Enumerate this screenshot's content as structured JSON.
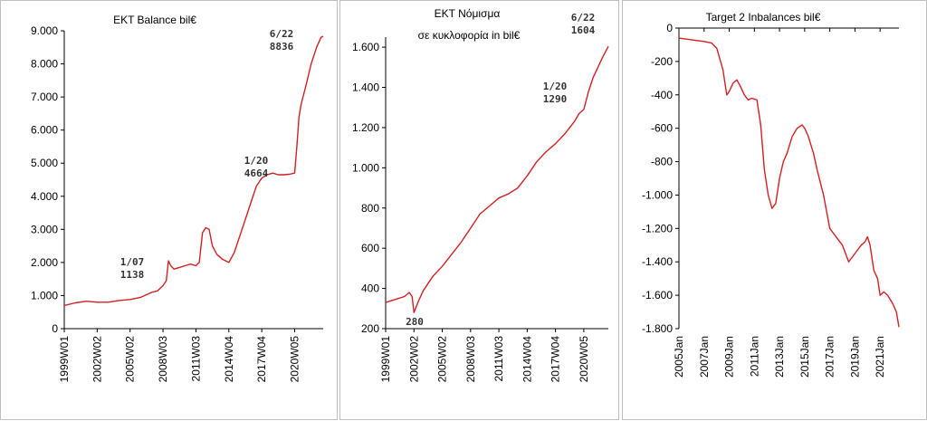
{
  "colors": {
    "line": "#d42020",
    "axis": "#000000",
    "frame": "#bdbdbd"
  },
  "chart_data": [
    {
      "type": "line",
      "title": "EKT Balance  bil€",
      "xlabel": "",
      "ylabel": "",
      "y_tick_labels": [
        "0",
        "1.000",
        "2.000",
        "3.000",
        "4.000",
        "5.000",
        "6.000",
        "7.000",
        "8.000",
        "9.000"
      ],
      "y_tick_values": [
        0,
        1000,
        2000,
        3000,
        4000,
        5000,
        6000,
        7000,
        8000,
        9000
      ],
      "ylim": [
        0,
        9000
      ],
      "x_tick_labels": [
        "1999W01",
        "2002W02",
        "2005W02",
        "2008W03",
        "2011W03",
        "2014W04",
        "2017W04",
        "2020W05"
      ],
      "x_tick_values": [
        1999.0,
        2002.0,
        2005.0,
        2008.0,
        2011.0,
        2014.0,
        2017.0,
        2020.0
      ],
      "xlim": [
        1999.0,
        2022.6
      ],
      "grid": false,
      "legend": "none",
      "series": [
        {
          "x": [
            1999.0,
            2000.0,
            2001.0,
            2002.0,
            2003.0,
            2004.0,
            2005.0,
            2006.0,
            2007.0,
            2007.5,
            2008.0,
            2008.3,
            2008.5,
            2008.7,
            2009.0,
            2009.5,
            2010.0,
            2010.5,
            2011.0,
            2011.3,
            2011.6,
            2011.9,
            2012.2,
            2012.5,
            2012.9,
            2013.4,
            2014.0,
            2014.5,
            2015.0,
            2015.5,
            2016.0,
            2016.5,
            2017.0,
            2017.5,
            2018.0,
            2018.5,
            2019.0,
            2019.5,
            2020.0,
            2020.2,
            2020.4,
            2020.6,
            2021.0,
            2021.5,
            2022.0,
            2022.4,
            2022.6
          ],
          "y": [
            700,
            780,
            830,
            800,
            800,
            850,
            880,
            950,
            1100,
            1140,
            1300,
            1450,
            2050,
            1900,
            1800,
            1850,
            1900,
            1950,
            1900,
            2000,
            2900,
            3050,
            3000,
            2500,
            2250,
            2100,
            2000,
            2300,
            2800,
            3300,
            3800,
            4300,
            4550,
            4650,
            4700,
            4650,
            4650,
            4664,
            4700,
            5500,
            6400,
            6800,
            7300,
            8000,
            8500,
            8800,
            8836
          ]
        }
      ],
      "annotations": [
        {
          "lines": [
            "1/07",
            "1138"
          ],
          "x": 2007.5,
          "y": 1138
        },
        {
          "lines": [
            "1/20",
            "4664"
          ],
          "x": 2019.5,
          "y": 4664
        },
        {
          "lines": [
            "6/22",
            "8836"
          ],
          "x": 2022.6,
          "y": 8836
        }
      ]
    },
    {
      "type": "line",
      "title": "ΕΚΤ   Νόμισμα",
      "subtitle": "σε κυκλοφορία  in bil€",
      "xlabel": "",
      "ylabel": "",
      "y_tick_labels": [
        "200",
        "400",
        "600",
        "800",
        "1.000",
        "1.200",
        "1.400",
        "1.600"
      ],
      "y_tick_values": [
        200,
        400,
        600,
        800,
        1000,
        1200,
        1400,
        1600
      ],
      "ylim": [
        200,
        1650
      ],
      "x_tick_labels": [
        "1999W01",
        "2002W02",
        "2005W02",
        "2008W03",
        "2011W03",
        "2014W04",
        "2017W04",
        "2020W05"
      ],
      "x_tick_values": [
        1999.0,
        2002.0,
        2005.0,
        2008.0,
        2011.0,
        2014.0,
        2017.0,
        2020.0
      ],
      "xlim": [
        1999.0,
        2022.6
      ],
      "grid": false,
      "legend": "none",
      "series": [
        {
          "x": [
            1999.0,
            2000.0,
            2001.0,
            2001.5,
            2001.8,
            2002.0,
            2002.5,
            2003.0,
            2004.0,
            2005.0,
            2006.0,
            2007.0,
            2008.0,
            2009.0,
            2010.0,
            2011.0,
            2012.0,
            2013.0,
            2014.0,
            2015.0,
            2016.0,
            2017.0,
            2018.0,
            2019.0,
            2019.5,
            2020.0,
            2020.5,
            2021.0,
            2021.5,
            2022.0,
            2022.6
          ],
          "y": [
            330,
            345,
            360,
            380,
            360,
            280,
            340,
            390,
            460,
            510,
            570,
            630,
            700,
            770,
            810,
            850,
            870,
            900,
            960,
            1030,
            1080,
            1120,
            1170,
            1230,
            1270,
            1290,
            1380,
            1450,
            1500,
            1550,
            1604
          ]
        }
      ],
      "annotations": [
        {
          "lines": [
            "280"
          ],
          "x": 2002.0,
          "y": 280
        },
        {
          "lines": [
            "1/20",
            "1290"
          ],
          "x": 2020.0,
          "y": 1290
        },
        {
          "lines": [
            "6/22",
            "1604"
          ],
          "x": 2022.6,
          "y": 1604
        }
      ]
    },
    {
      "type": "line",
      "title": "Target 2  Inbalances bil€",
      "xlabel": "",
      "ylabel": "",
      "y_tick_labels": [
        "0",
        "-200",
        "-400",
        "-600",
        "-800",
        "-1.000",
        "-1.200",
        "-1.400",
        "-1.600",
        "-1.800"
      ],
      "y_tick_values": [
        0,
        -200,
        -400,
        -600,
        -800,
        -1000,
        -1200,
        -1400,
        -1600,
        -1800
      ],
      "ylim": [
        -1800,
        0
      ],
      "x_tick_labels": [
        "2005Jan",
        "2007Jan",
        "2009Jan",
        "2011Jan",
        "2013Jan",
        "2015Jan",
        "2017Jan",
        "2019Jan",
        "2021Jan"
      ],
      "x_tick_values": [
        2005.0,
        2007.0,
        2009.0,
        2011.0,
        2013.0,
        2015.0,
        2017.0,
        2019.0,
        2021.0
      ],
      "xlim": [
        2005.0,
        2022.5
      ],
      "grid": false,
      "legend": "none",
      "series": [
        {
          "x": [
            2005.0,
            2006.0,
            2007.0,
            2007.6,
            2008.0,
            2008.5,
            2008.8,
            2009.0,
            2009.3,
            2009.6,
            2009.9,
            2010.2,
            2010.5,
            2010.8,
            2011.2,
            2011.5,
            2011.8,
            2012.1,
            2012.4,
            2012.7,
            2013.0,
            2013.3,
            2013.6,
            2014.0,
            2014.4,
            2014.8,
            2015.0,
            2015.3,
            2015.7,
            2016.0,
            2016.5,
            2017.0,
            2017.5,
            2018.0,
            2018.5,
            2019.0,
            2019.5,
            2019.8,
            2020.0,
            2020.2,
            2020.5,
            2020.8,
            2021.0,
            2021.3,
            2021.6,
            2022.0,
            2022.3,
            2022.5
          ],
          "y": [
            -60,
            -70,
            -80,
            -90,
            -120,
            -250,
            -400,
            -380,
            -330,
            -310,
            -350,
            -400,
            -430,
            -420,
            -430,
            -580,
            -850,
            -1000,
            -1080,
            -1050,
            -900,
            -800,
            -750,
            -650,
            -600,
            -580,
            -600,
            -650,
            -750,
            -850,
            -1000,
            -1200,
            -1250,
            -1300,
            -1400,
            -1350,
            -1300,
            -1280,
            -1250,
            -1300,
            -1450,
            -1500,
            -1600,
            -1580,
            -1600,
            -1650,
            -1700,
            -1790
          ]
        }
      ],
      "annotations": []
    }
  ]
}
